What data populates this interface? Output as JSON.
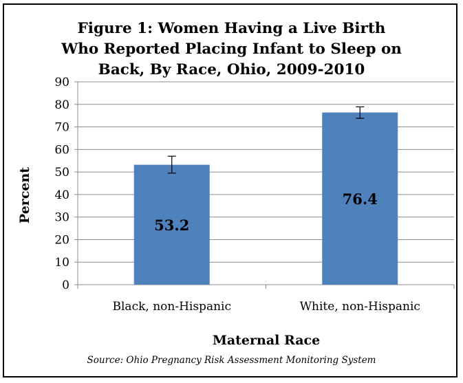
{
  "chart_data": {
    "type": "bar",
    "title_lines": [
      "Figure 1: Women Having a Live Birth",
      "Who Reported Placing Infant to Sleep on",
      "Back, By Race, Ohio, 2009-2010"
    ],
    "categories": [
      "Black, non-Hispanic",
      "White, non-Hispanic"
    ],
    "values": [
      53.2,
      76.4
    ],
    "value_labels": [
      "53.2",
      "76.4"
    ],
    "error_bars": [
      [
        49.5,
        57.0
      ],
      [
        73.8,
        78.9
      ]
    ],
    "xlabel": "Maternal Race",
    "ylabel": "Percent",
    "ylim": [
      0,
      90
    ],
    "yticks": [
      0,
      10,
      20,
      30,
      40,
      50,
      60,
      70,
      80,
      90
    ],
    "grid": true,
    "legend": "none",
    "bar_color": "#4f81bd",
    "grid_color": "#8c8c8c",
    "source": "Source:  Ohio Pregnancy Risk Assessment Monitoring System"
  }
}
